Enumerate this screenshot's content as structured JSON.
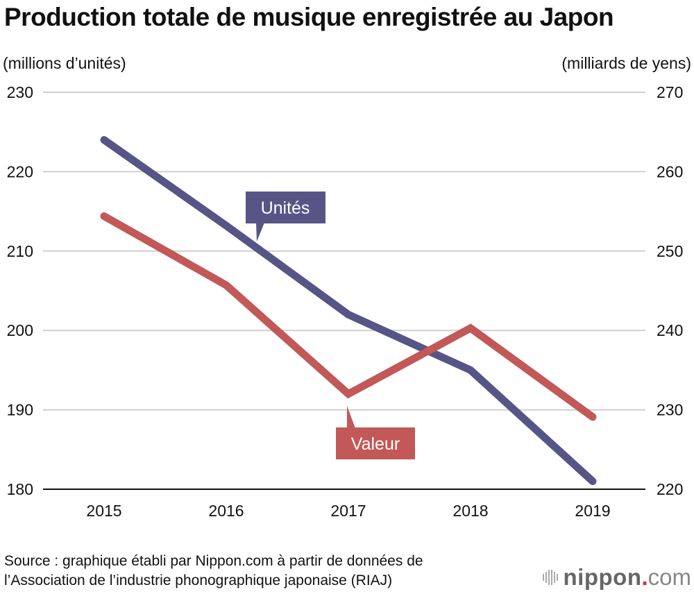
{
  "chart_data": {
    "type": "line",
    "title": "Production totale de musique enregistrée au Japon",
    "ylabel_left": "(millions d’unités)",
    "ylabel_right": "(milliards de yens)",
    "categories": [
      "2015",
      "2016",
      "2017",
      "2018",
      "2019"
    ],
    "ylim_left": [
      180,
      230
    ],
    "ylim_right": [
      220,
      270
    ],
    "yticks_left": [
      180,
      190,
      200,
      210,
      220,
      230
    ],
    "yticks_right": [
      220,
      230,
      240,
      250,
      260,
      270
    ],
    "grid": true,
    "series": [
      {
        "name": "Unités",
        "axis": "left",
        "color": "#575586",
        "values": [
          224.0,
          213.2,
          202.0,
          195.0,
          181.0
        ]
      },
      {
        "name": "Valeur",
        "axis": "right",
        "color": "#c25857",
        "values": [
          254.4,
          245.7,
          232.0,
          240.3,
          229.1
        ]
      }
    ],
    "annotations": [
      {
        "label": "Unités",
        "series": "Unités"
      },
      {
        "label": "Valeur",
        "series": "Valeur"
      }
    ]
  },
  "source": {
    "line1": "Source : graphique établi par Nippon.com à partir de données de",
    "line2": "l’Association de l’industrie phonographique japonaise (RIAJ)"
  },
  "logo": {
    "name": "nippon",
    "dot": ".",
    "suffix": "com"
  }
}
